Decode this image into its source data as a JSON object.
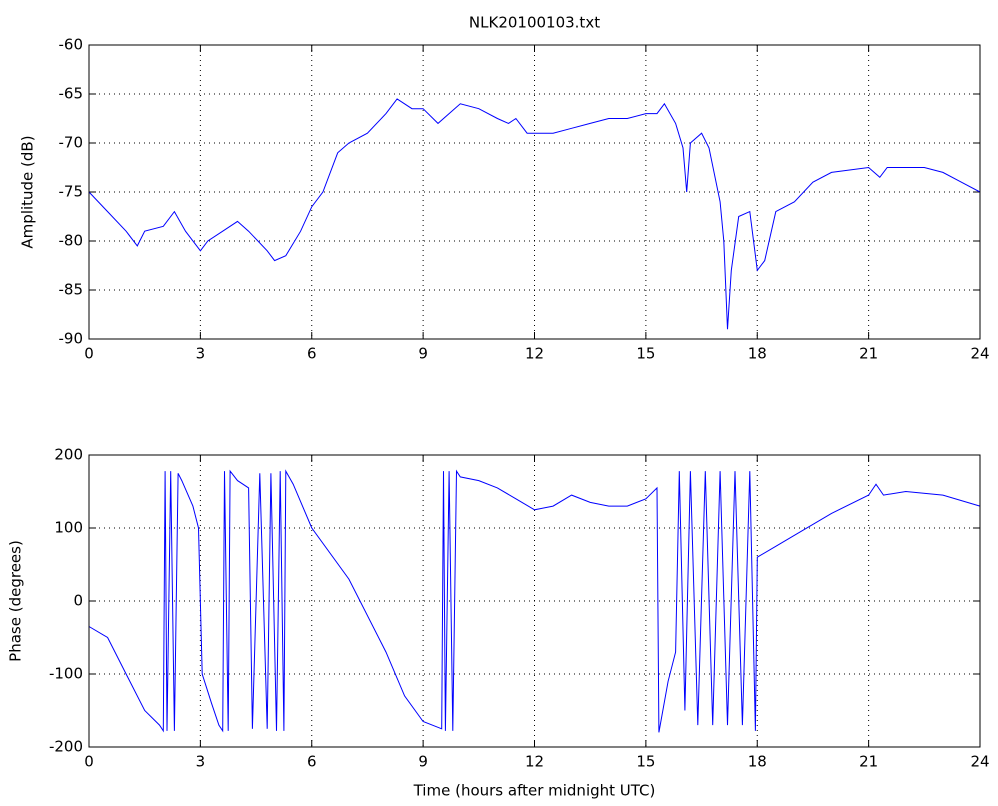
{
  "chart_data": [
    {
      "type": "line",
      "title": "NLK20100103.txt",
      "y_label": "Amplitude (dB)",
      "xlim": [
        0,
        24
      ],
      "xticks": [
        0,
        3,
        6,
        9,
        12,
        15,
        18,
        21,
        24
      ],
      "ylim": [
        -90,
        -60
      ],
      "yticks": [
        -90,
        -85,
        -80,
        -75,
        -70,
        -65,
        -60
      ],
      "grid": true,
      "x": [
        0,
        0.5,
        1,
        1.3,
        1.5,
        2,
        2.3,
        2.6,
        3,
        3.2,
        3.6,
        4,
        4.3,
        4.8,
        5,
        5.3,
        5.7,
        6,
        6.3,
        6.7,
        7,
        7.5,
        8,
        8.3,
        8.7,
        9,
        9.4,
        9.7,
        10,
        10.5,
        11,
        11.3,
        11.5,
        11.8,
        12,
        12.5,
        13,
        13.5,
        14,
        14.5,
        15,
        15.3,
        15.5,
        15.8,
        16,
        16.1,
        16.2,
        16.5,
        16.7,
        17,
        17.1,
        17.2,
        17.3,
        17.5,
        17.8,
        18,
        18.2,
        18.5,
        19,
        19.5,
        20,
        21,
        21.3,
        21.5,
        22,
        22.5,
        23,
        23.5,
        24
      ],
      "series": [
        {
          "name": "Amplitude",
          "color": "#0000ff",
          "values": [
            -75,
            -77,
            -79,
            -80.5,
            -79,
            -78.5,
            -77,
            -79,
            -81,
            -80,
            -79,
            -78,
            -79,
            -81,
            -82,
            -81.5,
            -79,
            -76.5,
            -75,
            -71,
            -70,
            -69,
            -67,
            -65.5,
            -66.5,
            -66.5,
            -68,
            -67,
            -66,
            -66.5,
            -67.5,
            -68,
            -67.5,
            -69,
            -69,
            -69,
            -68.5,
            -68,
            -67.5,
            -67.5,
            -67,
            -67,
            -66,
            -68,
            -70.5,
            -75,
            -70,
            -69,
            -70.5,
            -76,
            -80,
            -89,
            -83,
            -77.5,
            -77,
            -83,
            -82,
            -77,
            -76,
            -74,
            -73,
            -72.5,
            -73.5,
            -72.5,
            -72.5,
            -72.5,
            -73,
            -74,
            -75
          ]
        }
      ]
    },
    {
      "type": "line",
      "x_label": "Time (hours after midnight UTC)",
      "y_label": "Phase (degrees)",
      "xlim": [
        0,
        24
      ],
      "xticks": [
        0,
        3,
        6,
        9,
        12,
        15,
        18,
        21,
        24
      ],
      "ylim": [
        -200,
        200
      ],
      "yticks": [
        -200,
        -100,
        0,
        100,
        200
      ],
      "grid": true,
      "x": [
        0,
        0.5,
        1,
        1.5,
        1.9,
        2.0,
        2.05,
        2.1,
        2.2,
        2.3,
        2.4,
        2.5,
        2.8,
        2.95,
        3.05,
        3.3,
        3.5,
        3.6,
        3.65,
        3.75,
        3.8,
        4,
        4.3,
        4.4,
        4.6,
        4.8,
        4.9,
        5.05,
        5.15,
        5.25,
        5.3,
        5.5,
        6,
        7,
        8,
        8.5,
        9,
        9.5,
        9.55,
        9.6,
        9.7,
        9.8,
        9.9,
        10,
        10.5,
        11,
        11.5,
        12,
        12.5,
        13,
        13.5,
        14,
        14.5,
        15,
        15.3,
        15.35,
        15.6,
        15.8,
        15.9,
        16.05,
        16.2,
        16.4,
        16.6,
        16.8,
        17,
        17.2,
        17.4,
        17.6,
        17.8,
        17.95,
        18,
        18.5,
        19,
        20,
        21,
        21.2,
        21.4,
        22,
        23,
        24
      ],
      "series": [
        {
          "name": "Phase",
          "color": "#0000ff",
          "values": [
            -35,
            -50,
            -100,
            -150,
            -170,
            -178,
            178,
            -178,
            178,
            -178,
            175,
            165,
            130,
            100,
            -100,
            -140,
            -170,
            -178,
            178,
            -178,
            178,
            165,
            155,
            -175,
            175,
            -175,
            175,
            -178,
            178,
            -178,
            178,
            160,
            100,
            30,
            -70,
            -130,
            -165,
            -175,
            178,
            -178,
            178,
            -178,
            178,
            170,
            165,
            155,
            140,
            125,
            130,
            145,
            135,
            130,
            130,
            140,
            155,
            -180,
            -110,
            -70,
            178,
            -150,
            178,
            -170,
            178,
            -170,
            178,
            -170,
            178,
            -170,
            178,
            -178,
            60,
            75,
            90,
            120,
            145,
            160,
            145,
            150,
            145,
            130
          ]
        }
      ]
    }
  ]
}
